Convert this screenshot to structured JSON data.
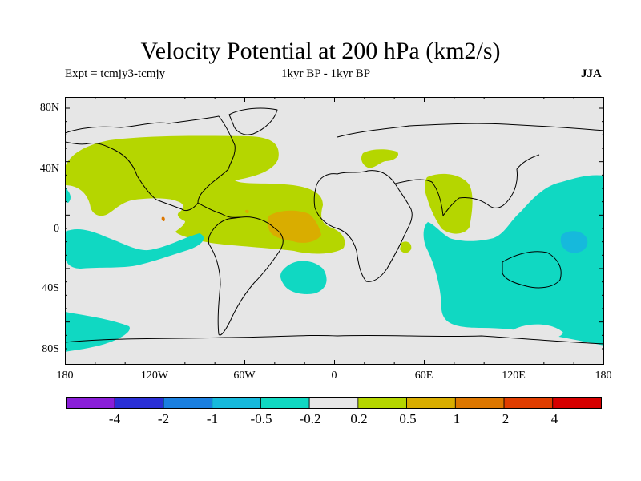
{
  "figure": {
    "title": "Velocity Potential at 200 hPa (km2/s)",
    "experiment": "Expt = tcmjy3-tcmjy",
    "period": "1kyr BP - 1kyr BP",
    "season": "JJA"
  },
  "axes": {
    "y_labels": [
      "80N",
      "40N",
      "0",
      "40S",
      "80S"
    ],
    "x_labels": [
      "180",
      "120W",
      "60W",
      "0",
      "60E",
      "120E",
      "180"
    ]
  },
  "colorbar": {
    "labels": [
      "-4",
      "-2",
      "-1",
      "-0.5",
      "-0.2",
      "0.2",
      "0.5",
      "1",
      "2",
      "4"
    ],
    "colors": [
      "#8a1ed8",
      "#2a2fd6",
      "#1a7fe0",
      "#16b9dc",
      "#10d8c2",
      "#e6e6e6",
      "#b5d600",
      "#d9ad00",
      "#dd7700",
      "#e03d00",
      "#d60000"
    ]
  },
  "map": {
    "background_color": "#e6e6e6",
    "coastline_color": "#000000",
    "regions": [
      {
        "name": "north-america-atlantic-positive",
        "level": "0.2 to 0.5",
        "color": "#b5d600"
      },
      {
        "name": "tropical-atlantic-positive",
        "level": "0.5 to 1",
        "color": "#d9ad00"
      },
      {
        "name": "arabian-sea-positive",
        "level": "0.2 to 0.5",
        "color": "#b5d600"
      },
      {
        "name": "indo-pacific-negative",
        "level": "-0.5 to -0.2",
        "color": "#10d8c2"
      },
      {
        "name": "new-guinea-negative",
        "level": "-1 to -0.5",
        "color": "#16b9dc"
      },
      {
        "name": "southeast-pacific-negative",
        "level": "-0.5 to -0.2",
        "color": "#10d8c2"
      }
    ]
  }
}
